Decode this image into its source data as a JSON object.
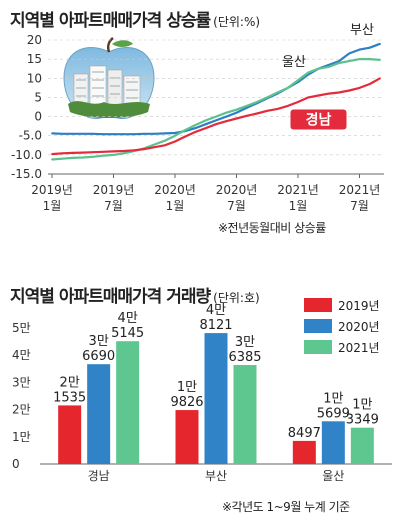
{
  "colors": {
    "busan": "#2e7fc4",
    "ulsan": "#5cc18c",
    "gyeongnam": "#e32b3b",
    "y2019": "#e5262d",
    "y2020": "#2f83c6",
    "y2021": "#5ec78f",
    "axis": "#666666",
    "grid": "#cccccc"
  },
  "photo_icon": "apple-apartment-photo",
  "chart_data": [
    {
      "type": "line",
      "title": "지역별 아파트매매가격 상승률",
      "unit": "(단위:%)",
      "note": "※전년동월대비 상승률",
      "ylim": [
        -15,
        20
      ],
      "yticks": [
        -15,
        -10,
        -5,
        0,
        5,
        10,
        15,
        20
      ],
      "ytick_labels": [
        "-15.0",
        "-10.0",
        "-5.0",
        "0",
        "5",
        "10",
        "15",
        "20"
      ],
      "x": [
        "2019-01",
        "2019-02",
        "2019-03",
        "2019-04",
        "2019-05",
        "2019-06",
        "2019-07",
        "2019-08",
        "2019-09",
        "2019-10",
        "2019-11",
        "2019-12",
        "2020-01",
        "2020-02",
        "2020-03",
        "2020-04",
        "2020-05",
        "2020-06",
        "2020-07",
        "2020-08",
        "2020-09",
        "2020-10",
        "2020-11",
        "2020-12",
        "2021-01",
        "2021-02",
        "2021-03",
        "2021-04",
        "2021-05",
        "2021-06",
        "2021-07",
        "2021-08",
        "2021-09"
      ],
      "xticks": [
        {
          "x": "2019-01",
          "year": "2019년",
          "month": "1월"
        },
        {
          "x": "2019-07",
          "year": "2019년",
          "month": "7월"
        },
        {
          "x": "2020-01",
          "year": "2020년",
          "month": "1월"
        },
        {
          "x": "2020-07",
          "year": "2020년",
          "month": "7월"
        },
        {
          "x": "2021-01",
          "year": "2021년",
          "month": "1월"
        },
        {
          "x": "2021-07",
          "year": "2021년",
          "month": "7월"
        }
      ],
      "series": [
        {
          "name": "부산",
          "color_key": "busan",
          "values": [
            -4.4,
            -4.5,
            -4.5,
            -4.5,
            -4.5,
            -4.6,
            -4.6,
            -4.6,
            -4.6,
            -4.5,
            -4.5,
            -4.4,
            -4.3,
            -3.8,
            -3.0,
            -2.0,
            -1.0,
            0.0,
            1.0,
            2.3,
            3.5,
            4.8,
            6.0,
            7.5,
            9.0,
            11.0,
            12.5,
            13.5,
            14.5,
            16.5,
            17.5,
            18.0,
            19.0
          ]
        },
        {
          "name": "울산",
          "color_key": "ulsan",
          "values": [
            -11.2,
            -11.0,
            -10.8,
            -10.7,
            -10.5,
            -10.2,
            -10.0,
            -9.6,
            -9.0,
            -8.3,
            -7.3,
            -6.3,
            -5.0,
            -3.5,
            -2.2,
            -1.0,
            0.0,
            1.0,
            1.8,
            2.8,
            3.8,
            5.0,
            6.3,
            7.5,
            9.5,
            11.5,
            12.5,
            13.0,
            14.0,
            14.5,
            15.0,
            15.0,
            14.8
          ]
        },
        {
          "name": "경남",
          "color_key": "gyeongnam",
          "values": [
            -9.8,
            -9.6,
            -9.5,
            -9.4,
            -9.3,
            -9.2,
            -9.1,
            -9.0,
            -8.8,
            -8.5,
            -8.0,
            -7.5,
            -6.5,
            -5.2,
            -4.0,
            -3.0,
            -2.0,
            -1.2,
            -0.5,
            0.2,
            0.8,
            1.5,
            2.0,
            2.8,
            3.8,
            5.0,
            5.5,
            6.0,
            6.3,
            6.8,
            7.5,
            8.5,
            10.0
          ]
        }
      ],
      "grid": true
    },
    {
      "type": "bar",
      "title": "지역별 아파트매매가격 거래량",
      "unit": "(단위:호)",
      "note": "※각년도 1~9월 누계 기준",
      "ylim": [
        0,
        50000
      ],
      "yticks": [
        0,
        10000,
        20000,
        30000,
        40000,
        50000
      ],
      "ytick_labels": [
        "0",
        "1만",
        "2만",
        "3만",
        "4만",
        "5만"
      ],
      "categories": [
        "경남",
        "부산",
        "울산"
      ],
      "series": [
        {
          "name": "2019년",
          "color_key": "y2019",
          "values": [
            21535,
            19826,
            8497
          ],
          "labels": [
            [
              "2만",
              "1535"
            ],
            [
              "1만",
              "9826"
            ],
            [
              "",
              "8497"
            ]
          ]
        },
        {
          "name": "2020년",
          "color_key": "y2020",
          "values": [
            36690,
            48121,
            15699
          ],
          "labels": [
            [
              "3만",
              "6690"
            ],
            [
              "4만",
              "8121"
            ],
            [
              "1만",
              "5699"
            ]
          ]
        },
        {
          "name": "2021년",
          "color_key": "y2021",
          "values": [
            45145,
            36385,
            13349
          ],
          "labels": [
            [
              "4만",
              "5145"
            ],
            [
              "3만",
              "6385"
            ],
            [
              "1만",
              "3349"
            ]
          ]
        }
      ],
      "legend": "top-right",
      "grid": false
    }
  ]
}
